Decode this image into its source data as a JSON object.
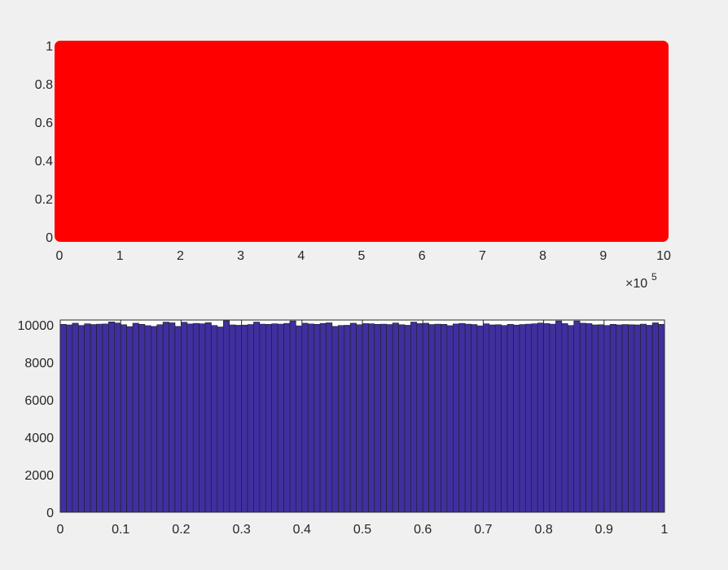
{
  "colors": {
    "background": "#f0f0f0",
    "scatter_marker": "#ff0000",
    "bar_fill": "#3f2f9f",
    "bar_edge": "#1e1e1e",
    "axis": "#262626"
  },
  "chart_data": [
    {
      "type": "scatter",
      "description_of_data": "one million uniform random samples plotted against index",
      "title": "",
      "xlabel": "",
      "ylabel": "",
      "xlim": [
        0,
        10
      ],
      "ylim": [
        0,
        1
      ],
      "x_multiplier_label": "×10",
      "x_multiplier_exponent": "5",
      "xticks": [
        0,
        1,
        2,
        3,
        4,
        5,
        6,
        7,
        8,
        9,
        10
      ],
      "xtick_labels": [
        "0",
        "1",
        "2",
        "3",
        "4",
        "5",
        "6",
        "7",
        "8",
        "9",
        "10"
      ],
      "yticks": [
        0,
        0.2,
        0.4,
        0.6,
        0.8,
        1
      ],
      "ytick_labels": [
        "0",
        "0.2",
        "0.4",
        "0.6",
        "0.8",
        "1"
      ],
      "points_fill_region": {
        "x": [
          0,
          10
        ],
        "y": [
          0,
          1
        ]
      },
      "grid": false
    },
    {
      "type": "bar",
      "title": "",
      "xlabel": "",
      "ylabel": "",
      "xlim": [
        0,
        1
      ],
      "ylim": [
        0,
        10250
      ],
      "bin_width": 0.01,
      "xticks": [
        0,
        0.1,
        0.2,
        0.3,
        0.4,
        0.5,
        0.6,
        0.7,
        0.8,
        0.9,
        1
      ],
      "xtick_labels": [
        "0",
        "0.1",
        "0.2",
        "0.3",
        "0.4",
        "0.5",
        "0.6",
        "0.7",
        "0.8",
        "0.9",
        "1"
      ],
      "yticks": [
        0,
        2000,
        4000,
        6000,
        8000,
        10000
      ],
      "ytick_labels": [
        "0",
        "2000",
        "4000",
        "6000",
        "8000",
        "10000"
      ],
      "values": [
        10020,
        9990,
        10080,
        9960,
        10050,
        10010,
        10030,
        10040,
        10150,
        10090,
        10000,
        9900,
        10080,
        10020,
        9950,
        9910,
        10000,
        10140,
        10100,
        9910,
        10130,
        10040,
        10070,
        10050,
        10110,
        9960,
        9880,
        10210,
        9990,
        9970,
        9980,
        10010,
        10140,
        10030,
        10020,
        10050,
        10030,
        10070,
        10200,
        9940,
        10080,
        10040,
        10020,
        10070,
        10100,
        9910,
        9960,
        9970,
        10080,
        10000,
        10060,
        10050,
        10020,
        10030,
        10010,
        10090,
        10000,
        9970,
        10140,
        10060,
        10080,
        10010,
        10030,
        10020,
        9950,
        10040,
        10070,
        10030,
        10010,
        9940,
        10050,
        9990,
        10000,
        9960,
        10020,
        9980,
        10010,
        10030,
        10050,
        10090,
        10060,
        10030,
        10200,
        10060,
        9960,
        10200,
        10080,
        10060,
        9990,
        10000,
        9960,
        10020,
        9990,
        10010,
        10000,
        9990,
        10030,
        9970,
        10100,
        10020
      ],
      "grid": false
    }
  ]
}
